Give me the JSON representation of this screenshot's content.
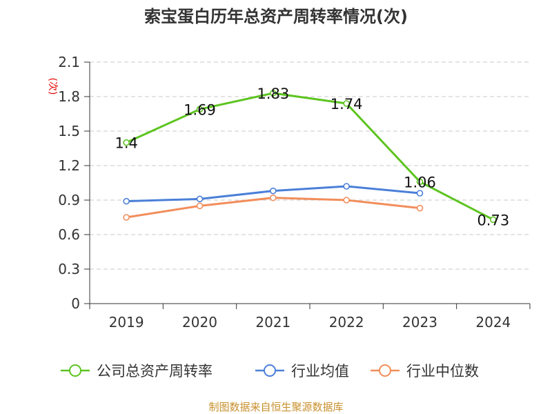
{
  "chart_data": {
    "type": "line",
    "title": "索宝蛋白历年总资产周转率情况(次)",
    "ylabel": "(次)",
    "xlabel": "",
    "categories": [
      "2019",
      "2020",
      "2021",
      "2022",
      "2023",
      "2024"
    ],
    "ylim": [
      0,
      2.1
    ],
    "yticks": [
      "0",
      "0.3",
      "0.6",
      "0.9",
      "1.2",
      "1.5",
      "1.8",
      "2.1"
    ],
    "grid": true,
    "legend_position": "bottom",
    "series": [
      {
        "name": "公司总资产周转率",
        "color": "#5cc41f",
        "values": [
          1.4,
          1.69,
          1.83,
          1.74,
          1.06,
          0.73
        ],
        "labels": [
          "1.4",
          "1.69",
          "1.83",
          "1.74",
          "1.06",
          "0.73"
        ]
      },
      {
        "name": "行业均值",
        "color": "#4a7fd8",
        "values": [
          0.89,
          0.91,
          0.98,
          1.02,
          0.96,
          null
        ],
        "labels": null
      },
      {
        "name": "行业中位数",
        "color": "#f28d5a",
        "values": [
          0.75,
          0.85,
          0.92,
          0.9,
          0.83,
          null
        ],
        "labels": null
      }
    ],
    "source": "制图数据来自恒生聚源数据库"
  }
}
